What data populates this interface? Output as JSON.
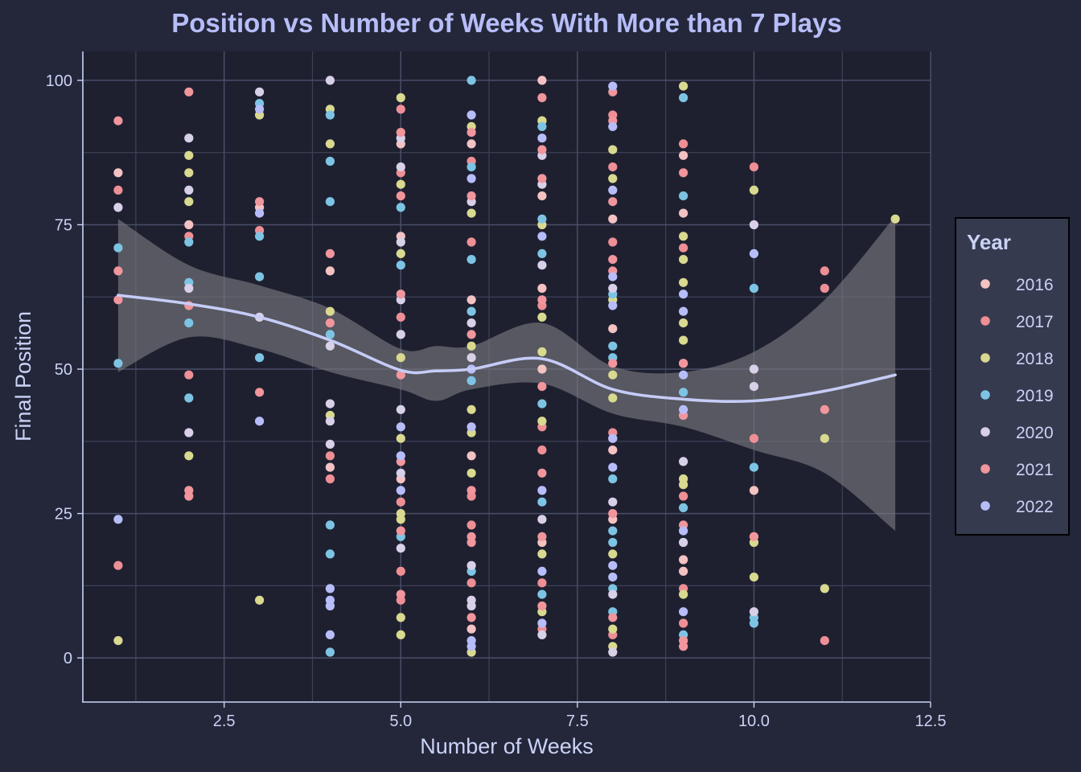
{
  "chart_data": {
    "type": "scatter",
    "title": "Position vs Number of Weeks With More than 7 Plays",
    "xlabel": "Number of Weeks",
    "ylabel": "Final Position",
    "xlim": [
      0.5,
      12.5
    ],
    "ylim": [
      -7.5,
      105
    ],
    "x_ticks": [
      "2.5",
      "5.0",
      "7.5",
      "10.0",
      "12.5"
    ],
    "y_ticks": [
      "0",
      "25",
      "50",
      "75",
      "100"
    ],
    "grid": true,
    "legend": {
      "title": "Year",
      "position": "right"
    },
    "series": [
      {
        "name": "2016",
        "color": "#f4c2c2",
        "points": [
          [
            1,
            84
          ],
          [
            2,
            75
          ],
          [
            3,
            78
          ],
          [
            4,
            67
          ],
          [
            4,
            33
          ],
          [
            5,
            89
          ],
          [
            5,
            73
          ],
          [
            5,
            31
          ],
          [
            6,
            89
          ],
          [
            6,
            62
          ],
          [
            6,
            35
          ],
          [
            6,
            5
          ],
          [
            7,
            100
          ],
          [
            7,
            80
          ],
          [
            7,
            64
          ],
          [
            7,
            50
          ],
          [
            7,
            20
          ],
          [
            8,
            76
          ],
          [
            8,
            57
          ],
          [
            8,
            36
          ],
          [
            8,
            24
          ],
          [
            9,
            87
          ],
          [
            9,
            77
          ],
          [
            9,
            17
          ],
          [
            9,
            15
          ],
          [
            10,
            29
          ]
        ]
      },
      {
        "name": "2017",
        "color": "#ee8f95",
        "points": [
          [
            1,
            81
          ],
          [
            1,
            16
          ],
          [
            2,
            73
          ],
          [
            2,
            49
          ],
          [
            3,
            74
          ],
          [
            4,
            35
          ],
          [
            4,
            31
          ],
          [
            5,
            95
          ],
          [
            5,
            84
          ],
          [
            5,
            59
          ],
          [
            5,
            27
          ],
          [
            5,
            15
          ],
          [
            5,
            10
          ],
          [
            6,
            86
          ],
          [
            6,
            72
          ],
          [
            6,
            28
          ],
          [
            6,
            23
          ],
          [
            6,
            13
          ],
          [
            7,
            93
          ],
          [
            7,
            61
          ],
          [
            7,
            40
          ],
          [
            7,
            36
          ],
          [
            7,
            13
          ],
          [
            7,
            5
          ],
          [
            8,
            94
          ],
          [
            8,
            85
          ],
          [
            8,
            72
          ],
          [
            8,
            39
          ],
          [
            8,
            25
          ],
          [
            8,
            4
          ],
          [
            9,
            89
          ],
          [
            9,
            71
          ],
          [
            9,
            28
          ],
          [
            9,
            12
          ],
          [
            9,
            6
          ],
          [
            10,
            85
          ],
          [
            10,
            38
          ],
          [
            10,
            21
          ],
          [
            11,
            67
          ],
          [
            11,
            64
          ],
          [
            11,
            3
          ]
        ]
      },
      {
        "name": "2018",
        "color": "#d9d98f",
        "points": [
          [
            1,
            3
          ],
          [
            2,
            87
          ],
          [
            2,
            84
          ],
          [
            2,
            79
          ],
          [
            2,
            35
          ],
          [
            3,
            94
          ],
          [
            3,
            10
          ],
          [
            4,
            95
          ],
          [
            4,
            89
          ],
          [
            4,
            60
          ],
          [
            4,
            42
          ],
          [
            5,
            97
          ],
          [
            5,
            82
          ],
          [
            5,
            70
          ],
          [
            5,
            52
          ],
          [
            5,
            38
          ],
          [
            5,
            25
          ],
          [
            5,
            24
          ],
          [
            5,
            7
          ],
          [
            5,
            4
          ],
          [
            6,
            92
          ],
          [
            6,
            77
          ],
          [
            6,
            54
          ],
          [
            6,
            43
          ],
          [
            6,
            39
          ],
          [
            6,
            32
          ],
          [
            6,
            1
          ],
          [
            7,
            93
          ],
          [
            7,
            75
          ],
          [
            7,
            59
          ],
          [
            7,
            53
          ],
          [
            7,
            41
          ],
          [
            7,
            18
          ],
          [
            7,
            8
          ],
          [
            8,
            88
          ],
          [
            8,
            83
          ],
          [
            8,
            62
          ],
          [
            8,
            49
          ],
          [
            8,
            45
          ],
          [
            8,
            18
          ],
          [
            8,
            5
          ],
          [
            8,
            2
          ],
          [
            9,
            99
          ],
          [
            9,
            73
          ],
          [
            9,
            69
          ],
          [
            9,
            65
          ],
          [
            9,
            58
          ],
          [
            9,
            55
          ],
          [
            9,
            31
          ],
          [
            9,
            30
          ],
          [
            9,
            11
          ],
          [
            10,
            81
          ],
          [
            10,
            20
          ],
          [
            10,
            14
          ],
          [
            11,
            38
          ],
          [
            11,
            12
          ],
          [
            12,
            76
          ]
        ]
      },
      {
        "name": "2019",
        "color": "#7dc4e4",
        "points": [
          [
            1,
            71
          ],
          [
            1,
            51
          ],
          [
            2,
            72
          ],
          [
            2,
            65
          ],
          [
            2,
            58
          ],
          [
            2,
            45
          ],
          [
            3,
            96
          ],
          [
            3,
            73
          ],
          [
            3,
            66
          ],
          [
            3,
            52
          ],
          [
            4,
            94
          ],
          [
            4,
            86
          ],
          [
            4,
            79
          ],
          [
            4,
            56
          ],
          [
            4,
            23
          ],
          [
            4,
            18
          ],
          [
            4,
            1
          ],
          [
            5,
            78
          ],
          [
            5,
            68
          ],
          [
            5,
            21
          ],
          [
            6,
            100
          ],
          [
            6,
            85
          ],
          [
            6,
            69
          ],
          [
            6,
            60
          ],
          [
            6,
            48
          ],
          [
            6,
            15
          ],
          [
            7,
            92
          ],
          [
            7,
            76
          ],
          [
            7,
            70
          ],
          [
            7,
            44
          ],
          [
            7,
            27
          ],
          [
            7,
            11
          ],
          [
            8,
            63
          ],
          [
            8,
            54
          ],
          [
            8,
            52
          ],
          [
            8,
            31
          ],
          [
            8,
            22
          ],
          [
            8,
            20
          ],
          [
            8,
            12
          ],
          [
            8,
            8
          ],
          [
            9,
            97
          ],
          [
            9,
            80
          ],
          [
            9,
            46
          ],
          [
            9,
            26
          ],
          [
            9,
            4
          ],
          [
            10,
            64
          ],
          [
            10,
            33
          ],
          [
            10,
            7
          ],
          [
            10,
            6
          ]
        ]
      },
      {
        "name": "2020",
        "color": "#d8d0e8",
        "points": [
          [
            1,
            78
          ],
          [
            2,
            90
          ],
          [
            2,
            81
          ],
          [
            2,
            64
          ],
          [
            2,
            39
          ],
          [
            3,
            98
          ],
          [
            3,
            59
          ],
          [
            4,
            100
          ],
          [
            4,
            54
          ],
          [
            4,
            44
          ],
          [
            4,
            41
          ],
          [
            4,
            37
          ],
          [
            5,
            90
          ],
          [
            5,
            85
          ],
          [
            5,
            72
          ],
          [
            5,
            62
          ],
          [
            5,
            56
          ],
          [
            5,
            43
          ],
          [
            5,
            32
          ],
          [
            5,
            19
          ],
          [
            6,
            79
          ],
          [
            6,
            58
          ],
          [
            6,
            52
          ],
          [
            6,
            16
          ],
          [
            6,
            10
          ],
          [
            6,
            9
          ],
          [
            7,
            87
          ],
          [
            7,
            82
          ],
          [
            7,
            68
          ],
          [
            7,
            24
          ],
          [
            7,
            4
          ],
          [
            8,
            64
          ],
          [
            8,
            27
          ],
          [
            8,
            11
          ],
          [
            8,
            1
          ],
          [
            9,
            51
          ],
          [
            9,
            34
          ],
          [
            9,
            20
          ],
          [
            10,
            75
          ],
          [
            10,
            50
          ],
          [
            10,
            47
          ],
          [
            10,
            8
          ]
        ]
      },
      {
        "name": "2021",
        "color": "#f0969c",
        "points": [
          [
            1,
            93
          ],
          [
            1,
            67
          ],
          [
            1,
            62
          ],
          [
            2,
            98
          ],
          [
            2,
            61
          ],
          [
            2,
            29
          ],
          [
            2,
            28
          ],
          [
            3,
            79
          ],
          [
            3,
            46
          ],
          [
            4,
            70
          ],
          [
            4,
            58
          ],
          [
            5,
            91
          ],
          [
            5,
            80
          ],
          [
            5,
            63
          ],
          [
            5,
            49
          ],
          [
            5,
            34
          ],
          [
            5,
            22
          ],
          [
            5,
            11
          ],
          [
            6,
            91
          ],
          [
            6,
            80
          ],
          [
            6,
            56
          ],
          [
            6,
            29
          ],
          [
            6,
            21
          ],
          [
            6,
            20
          ],
          [
            6,
            7
          ],
          [
            7,
            97
          ],
          [
            7,
            88
          ],
          [
            7,
            83
          ],
          [
            7,
            62
          ],
          [
            7,
            47
          ],
          [
            7,
            32
          ],
          [
            7,
            21
          ],
          [
            7,
            9
          ],
          [
            8,
            98
          ],
          [
            8,
            93
          ],
          [
            8,
            79
          ],
          [
            8,
            69
          ],
          [
            8,
            67
          ],
          [
            8,
            51
          ],
          [
            8,
            38
          ],
          [
            8,
            25
          ],
          [
            8,
            7
          ],
          [
            9,
            84
          ],
          [
            9,
            51
          ],
          [
            9,
            42
          ],
          [
            9,
            23
          ],
          [
            9,
            3
          ],
          [
            9,
            2
          ],
          [
            10,
            21
          ],
          [
            11,
            43
          ]
        ]
      },
      {
        "name": "2022",
        "color": "#b7bdf8",
        "points": [
          [
            1,
            24
          ],
          [
            3,
            95
          ],
          [
            3,
            77
          ],
          [
            3,
            41
          ],
          [
            4,
            12
          ],
          [
            4,
            10
          ],
          [
            4,
            9
          ],
          [
            4,
            4
          ],
          [
            5,
            40
          ],
          [
            5,
            35
          ],
          [
            5,
            29
          ],
          [
            6,
            94
          ],
          [
            6,
            83
          ],
          [
            6,
            50
          ],
          [
            6,
            40
          ],
          [
            6,
            3
          ],
          [
            6,
            2
          ],
          [
            7,
            90
          ],
          [
            7,
            73
          ],
          [
            7,
            29
          ],
          [
            7,
            15
          ],
          [
            7,
            6
          ],
          [
            8,
            99
          ],
          [
            8,
            92
          ],
          [
            8,
            81
          ],
          [
            8,
            66
          ],
          [
            8,
            61
          ],
          [
            8,
            38
          ],
          [
            8,
            33
          ],
          [
            8,
            16
          ],
          [
            8,
            14
          ],
          [
            9,
            63
          ],
          [
            9,
            60
          ],
          [
            9,
            49
          ],
          [
            9,
            43
          ],
          [
            9,
            22
          ],
          [
            9,
            8
          ],
          [
            10,
            70
          ]
        ]
      }
    ],
    "smooth": {
      "name": "loess",
      "x": [
        1,
        2,
        3,
        4,
        5,
        5.5,
        6,
        7,
        8,
        9,
        10,
        11,
        12
      ],
      "y": [
        62.8,
        61.3,
        59,
        55,
        49.8,
        49.7,
        50,
        51.8,
        46.5,
        44.8,
        44.5,
        46.2,
        49
      ],
      "lower": [
        49.5,
        55.5,
        53.5,
        49.5,
        46.5,
        44.5,
        46.5,
        47.5,
        42.3,
        40,
        36,
        32,
        22
      ],
      "upper": [
        76,
        68,
        64.5,
        60.5,
        53.5,
        54,
        54,
        58,
        50.5,
        49.5,
        53,
        62,
        76.5
      ]
    }
  }
}
